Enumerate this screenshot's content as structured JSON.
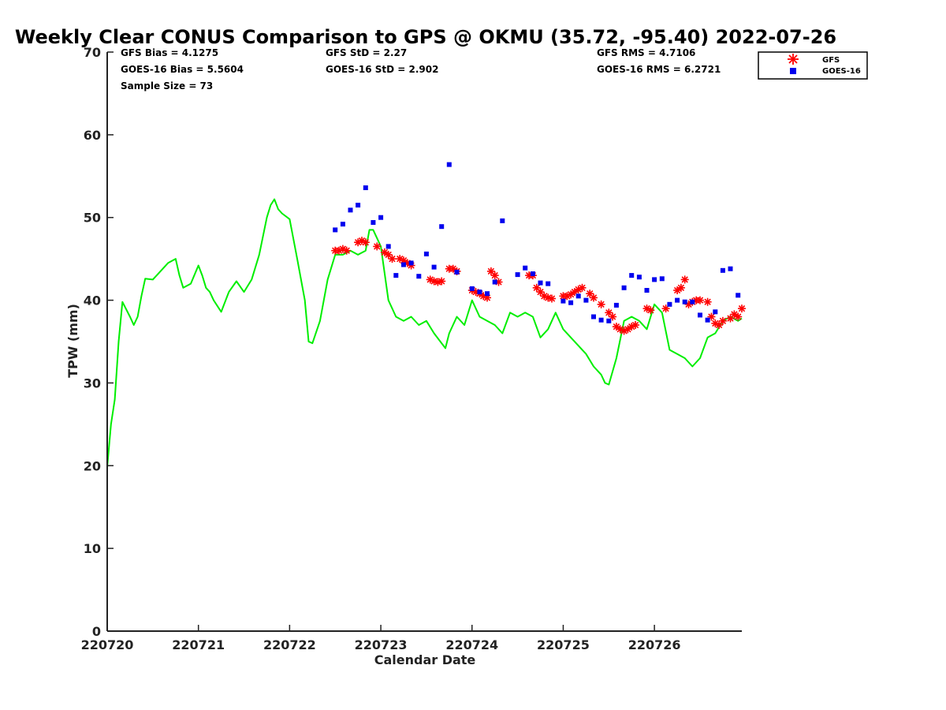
{
  "chart_data": {
    "type": "scatter",
    "title": "Weekly Clear CONUS Comparison to GPS @ OKMU (35.72, -95.40) 2022-07-26",
    "xlabel": "Calendar Date",
    "ylabel": "TPW (mm)",
    "x_ticks": [
      "220720",
      "220721",
      "220722",
      "220723",
      "220724",
      "220725",
      "220726"
    ],
    "y_ticks": [
      0,
      10,
      20,
      30,
      40,
      50,
      60,
      70
    ],
    "ylim": [
      0,
      70
    ],
    "xlim": [
      "2022-07-20T00:00",
      "2022-07-26T23:00"
    ],
    "grid": false,
    "legend_position": "top-right",
    "stats": {
      "gfs_bias": "GFS Bias = 4.1275",
      "goes_bias": "GOES-16 Bias = 5.5604",
      "sample_size": "Sample Size = 73",
      "gfs_std": "GFS StD = 2.27",
      "goes_std": "GOES-16 StD = 2.902",
      "gfs_rms": "GFS RMS = 4.7106",
      "goes_rms": "GOES-16 RMS = 6.2721"
    },
    "series": [
      {
        "type": "line",
        "color": "#00ee00",
        "x": [
          "2022-07-20T00:00",
          "2022-07-20T01:00",
          "2022-07-20T02:00",
          "2022-07-20T03:00",
          "2022-07-20T04:00",
          "2022-07-20T06:00",
          "2022-07-20T07:00",
          "2022-07-20T08:00",
          "2022-07-20T09:00",
          "2022-07-20T10:00",
          "2022-07-20T12:00",
          "2022-07-20T14:00",
          "2022-07-20T16:00",
          "2022-07-20T18:00",
          "2022-07-20T19:00",
          "2022-07-20T20:00",
          "2022-07-20T22:00",
          "2022-07-21T00:00",
          "2022-07-21T01:00",
          "2022-07-21T02:00",
          "2022-07-21T03:00",
          "2022-07-21T04:00",
          "2022-07-21T06:00",
          "2022-07-21T08:00",
          "2022-07-21T10:00",
          "2022-07-21T12:00",
          "2022-07-21T14:00",
          "2022-07-21T16:00",
          "2022-07-21T18:00",
          "2022-07-21T19:00",
          "2022-07-21T20:00",
          "2022-07-21T21:00",
          "2022-07-21T22:00",
          "2022-07-22T00:00",
          "2022-07-22T02:00",
          "2022-07-22T04:00",
          "2022-07-22T05:00",
          "2022-07-22T06:00",
          "2022-07-22T08:00",
          "2022-07-22T10:00",
          "2022-07-22T12:00",
          "2022-07-22T14:00",
          "2022-07-22T16:00",
          "2022-07-22T18:00",
          "2022-07-22T20:00",
          "2022-07-22T21:00",
          "2022-07-22T22:00",
          "2022-07-23T00:00",
          "2022-07-23T02:00",
          "2022-07-23T04:00",
          "2022-07-23T06:00",
          "2022-07-23T08:00",
          "2022-07-23T10:00",
          "2022-07-23T12:00",
          "2022-07-23T14:00",
          "2022-07-23T16:00",
          "2022-07-23T17:00",
          "2022-07-23T18:00",
          "2022-07-23T20:00",
          "2022-07-23T22:00",
          "2022-07-24T00:00",
          "2022-07-24T02:00",
          "2022-07-24T04:00",
          "2022-07-24T06:00",
          "2022-07-24T08:00",
          "2022-07-24T10:00",
          "2022-07-24T12:00",
          "2022-07-24T14:00",
          "2022-07-24T16:00",
          "2022-07-24T18:00",
          "2022-07-24T20:00",
          "2022-07-24T22:00",
          "2022-07-25T00:00",
          "2022-07-25T02:00",
          "2022-07-25T04:00",
          "2022-07-25T06:00",
          "2022-07-25T08:00",
          "2022-07-25T10:00",
          "2022-07-25T11:00",
          "2022-07-25T12:00",
          "2022-07-25T14:00",
          "2022-07-25T16:00",
          "2022-07-25T18:00",
          "2022-07-25T20:00",
          "2022-07-25T22:00",
          "2022-07-26T00:00",
          "2022-07-26T02:00",
          "2022-07-26T04:00",
          "2022-07-26T06:00",
          "2022-07-26T08:00",
          "2022-07-26T10:00",
          "2022-07-26T12:00",
          "2022-07-26T14:00",
          "2022-07-26T16:00",
          "2022-07-26T18:00",
          "2022-07-26T20:00",
          "2022-07-26T22:00",
          "2022-07-26T23:00"
        ],
        "y": [
          19.8,
          25.0,
          28.0,
          35.0,
          39.8,
          38.0,
          37.0,
          38.0,
          40.5,
          42.6,
          42.5,
          43.5,
          44.5,
          45.0,
          43.0,
          41.5,
          42.0,
          44.2,
          43.0,
          41.5,
          41.0,
          40.0,
          38.6,
          41.0,
          42.3,
          41.0,
          42.5,
          45.5,
          50.0,
          51.5,
          52.2,
          51.0,
          50.5,
          49.8,
          45.0,
          40.0,
          35.0,
          34.8,
          37.5,
          42.5,
          45.5,
          45.5,
          46.0,
          45.5,
          46.0,
          48.5,
          48.5,
          46.5,
          40.0,
          38.0,
          37.5,
          38.0,
          37.0,
          37.5,
          36.0,
          34.8,
          34.2,
          36.0,
          38.0,
          37.0,
          40.0,
          38.0,
          37.5,
          37.0,
          36.0,
          38.5,
          38.0,
          38.5,
          38.0,
          35.5,
          36.5,
          38.5,
          36.5,
          35.5,
          34.5,
          33.5,
          32.0,
          31.0,
          30.0,
          29.8,
          33.0,
          37.5,
          38.0,
          37.5,
          36.5,
          39.5,
          38.5,
          34.0,
          33.5,
          33.0,
          32.0,
          33.0,
          35.5,
          36.0,
          37.5,
          38.0,
          37.5,
          37.8
        ]
      },
      {
        "name": "GFS",
        "marker": "asterisk",
        "color": "#ff0000",
        "x": [
          "2022-07-22T12:00",
          "2022-07-22T13:00",
          "2022-07-22T14:00",
          "2022-07-22T15:00",
          "2022-07-22T18:00",
          "2022-07-22T19:00",
          "2022-07-22T20:00",
          "2022-07-22T23:00",
          "2022-07-23T01:00",
          "2022-07-23T02:00",
          "2022-07-23T03:00",
          "2022-07-23T05:00",
          "2022-07-23T06:00",
          "2022-07-23T07:00",
          "2022-07-23T08:00",
          "2022-07-23T13:00",
          "2022-07-23T14:00",
          "2022-07-23T15:00",
          "2022-07-23T16:00",
          "2022-07-23T18:00",
          "2022-07-23T19:00",
          "2022-07-23T20:00",
          "2022-07-24T00:00",
          "2022-07-24T01:00",
          "2022-07-24T02:00",
          "2022-07-24T03:00",
          "2022-07-24T04:00",
          "2022-07-24T05:00",
          "2022-07-24T06:00",
          "2022-07-24T07:00",
          "2022-07-24T15:00",
          "2022-07-24T16:00",
          "2022-07-24T17:00",
          "2022-07-24T18:00",
          "2022-07-24T19:00",
          "2022-07-24T20:00",
          "2022-07-24T21:00",
          "2022-07-25T00:00",
          "2022-07-25T01:00",
          "2022-07-25T02:00",
          "2022-07-25T03:00",
          "2022-07-25T04:00",
          "2022-07-25T05:00",
          "2022-07-25T07:00",
          "2022-07-25T08:00",
          "2022-07-25T10:00",
          "2022-07-25T12:00",
          "2022-07-25T13:00",
          "2022-07-25T14:00",
          "2022-07-25T15:00",
          "2022-07-25T16:00",
          "2022-07-25T17:00",
          "2022-07-25T18:00",
          "2022-07-25T19:00",
          "2022-07-25T22:00",
          "2022-07-25T23:00",
          "2022-07-26T03:00",
          "2022-07-26T06:00",
          "2022-07-26T07:00",
          "2022-07-26T08:00",
          "2022-07-26T09:00",
          "2022-07-26T10:00",
          "2022-07-26T11:00",
          "2022-07-26T12:00",
          "2022-07-26T14:00",
          "2022-07-26T15:00",
          "2022-07-26T16:00",
          "2022-07-26T17:00",
          "2022-07-26T18:00",
          "2022-07-26T20:00",
          "2022-07-26T22:00",
          "2022-07-26T23:00",
          "2022-07-26T21:00"
        ],
        "y": [
          46.0,
          46.0,
          46.2,
          46.0,
          47.0,
          47.2,
          47.0,
          46.5,
          45.8,
          45.5,
          45.0,
          45.0,
          44.8,
          44.5,
          44.2,
          42.5,
          42.3,
          42.2,
          42.3,
          43.8,
          43.8,
          43.5,
          41.2,
          41.0,
          40.8,
          40.5,
          40.3,
          43.5,
          43.0,
          42.2,
          43.0,
          43.0,
          41.5,
          41.0,
          40.5,
          40.3,
          40.2,
          40.5,
          40.5,
          40.7,
          41.0,
          41.3,
          41.5,
          40.8,
          40.3,
          39.5,
          38.5,
          38.0,
          36.8,
          36.5,
          36.3,
          36.5,
          36.8,
          37.0,
          39.0,
          38.8,
          39.0,
          41.2,
          41.5,
          42.5,
          39.5,
          39.8,
          40.0,
          40.0,
          39.8,
          38.0,
          37.2,
          37.0,
          37.5,
          37.8,
          38.0,
          39.0,
          38.3
        ]
      },
      {
        "name": "GOES-16",
        "marker": "square",
        "color": "#0000ee",
        "x": [
          "2022-07-22T12:00",
          "2022-07-22T14:00",
          "2022-07-22T16:00",
          "2022-07-22T18:00",
          "2022-07-22T20:00",
          "2022-07-22T22:00",
          "2022-07-23T00:00",
          "2022-07-23T02:00",
          "2022-07-23T04:00",
          "2022-07-23T06:00",
          "2022-07-23T08:00",
          "2022-07-23T10:00",
          "2022-07-23T12:00",
          "2022-07-23T14:00",
          "2022-07-23T16:00",
          "2022-07-23T18:00",
          "2022-07-23T20:00",
          "2022-07-24T00:00",
          "2022-07-24T02:00",
          "2022-07-24T04:00",
          "2022-07-24T06:00",
          "2022-07-24T08:00",
          "2022-07-24T12:00",
          "2022-07-24T14:00",
          "2022-07-24T16:00",
          "2022-07-24T18:00",
          "2022-07-24T20:00",
          "2022-07-25T00:00",
          "2022-07-25T02:00",
          "2022-07-25T04:00",
          "2022-07-25T06:00",
          "2022-07-25T08:00",
          "2022-07-25T10:00",
          "2022-07-25T12:00",
          "2022-07-25T14:00",
          "2022-07-25T16:00",
          "2022-07-25T18:00",
          "2022-07-25T20:00",
          "2022-07-25T22:00",
          "2022-07-26T00:00",
          "2022-07-26T02:00",
          "2022-07-26T04:00",
          "2022-07-26T06:00",
          "2022-07-26T08:00",
          "2022-07-26T10:00",
          "2022-07-26T12:00",
          "2022-07-26T14:00",
          "2022-07-26T16:00",
          "2022-07-26T18:00",
          "2022-07-26T20:00",
          "2022-07-26T22:00"
        ],
        "y": [
          48.5,
          49.2,
          50.9,
          51.5,
          53.6,
          49.4,
          50.0,
          46.5,
          43.0,
          44.3,
          44.5,
          42.9,
          45.6,
          44.0,
          48.9,
          56.4,
          43.4,
          41.4,
          41.0,
          40.8,
          42.2,
          49.6,
          43.1,
          43.9,
          43.2,
          42.1,
          42.0,
          39.9,
          39.7,
          40.5,
          40.0,
          38.0,
          37.6,
          37.5,
          39.4,
          41.5,
          43.0,
          42.8,
          41.2,
          42.5,
          42.6,
          39.5,
          40.0,
          39.8,
          39.8,
          38.2,
          37.6,
          38.6,
          43.6,
          43.8,
          40.6
        ]
      }
    ]
  }
}
